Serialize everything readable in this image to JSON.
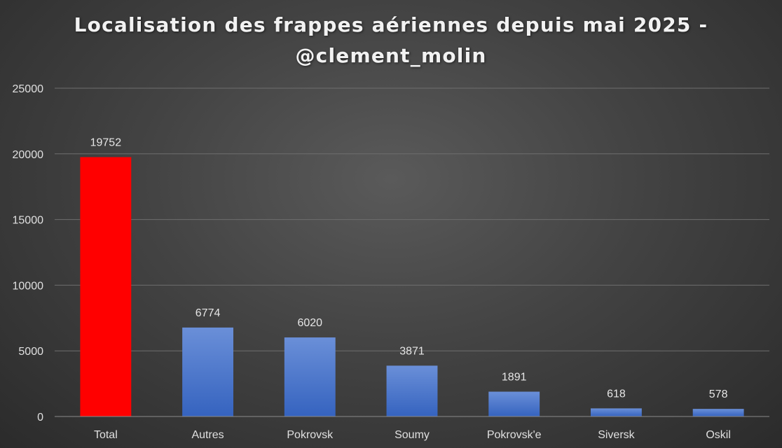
{
  "chart_data": {
    "type": "bar",
    "title_line1": "Localisation des frappes aériennes depuis mai 2025 -",
    "title_line2": "@clement_molin",
    "categories": [
      "Total",
      "Autres",
      "Pokrovsk",
      "Soumy",
      "Pokrovsk'e",
      "Siversk",
      "Oskil"
    ],
    "values": [
      19752,
      6774,
      6020,
      3871,
      1891,
      618,
      578
    ],
    "bar_colors": [
      "#ff0000",
      "#4472c4",
      "#4472c4",
      "#4472c4",
      "#4472c4",
      "#4472c4",
      "#4472c4"
    ],
    "ylim": [
      0,
      25000
    ],
    "yticks": [
      0,
      5000,
      10000,
      15000,
      20000,
      25000
    ],
    "grid": true,
    "legend": "none"
  }
}
